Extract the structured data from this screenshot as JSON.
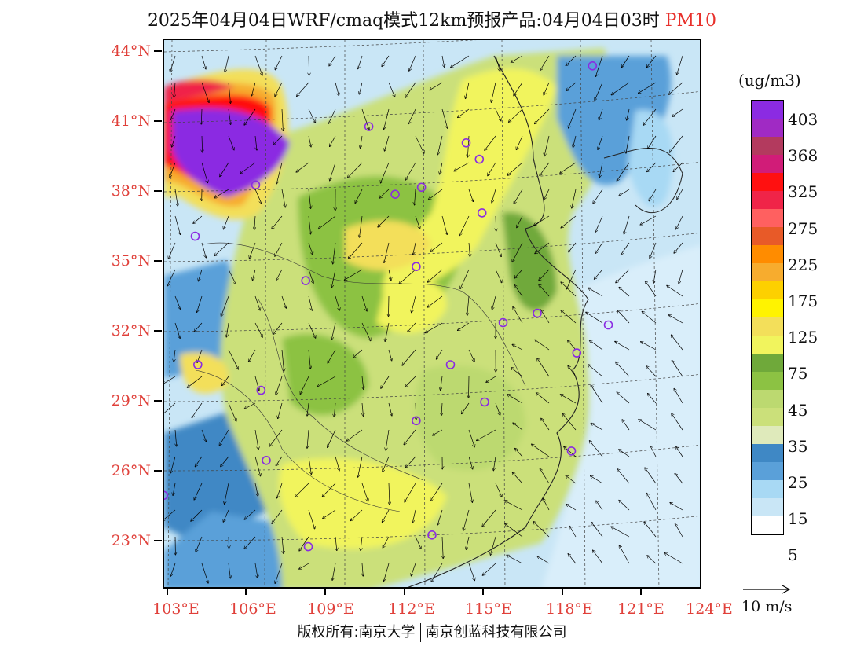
{
  "title": {
    "main": "2025年04月04日WRF/cmaq模式12km预报产品:04月04日03时",
    "pollutant": "PM10"
  },
  "lat_labels": [
    "44°N",
    "41°N",
    "38°N",
    "35°N",
    "32°N",
    "29°N",
    "26°N",
    "23°N"
  ],
  "lon_labels": [
    "103°E",
    "106°E",
    "109°E",
    "112°E",
    "115°E",
    "118°E",
    "121°E",
    "124°E"
  ],
  "legend": {
    "unit": "(ug/m3)",
    "levels": [
      "403",
      "368",
      "325",
      "275",
      "225",
      "175",
      "125",
      "75",
      "45",
      "35",
      "25",
      "15",
      "5"
    ],
    "colors": [
      "#8b2be2",
      "#a02ac4",
      "#b33a5e",
      "#d11c78",
      "#ff1010",
      "#f02448",
      "#ff6060",
      "#e85a28",
      "#ff8c00",
      "#f7ac2e",
      "#fdd000",
      "#fff300",
      "#f3df5a",
      "#f1f45d",
      "#6fa93a",
      "#8cc243",
      "#bcd970",
      "#cbe07a",
      "#dfeabb",
      "#3f88c5",
      "#5aa0d9",
      "#a8d9f4",
      "#c9e6f6",
      "#ffffff"
    ]
  },
  "wind_key": {
    "label": "10 m/s"
  },
  "stations": [
    {
      "lon": 119.1,
      "lat": 43.4
    },
    {
      "lon": 110.6,
      "lat": 40.8
    },
    {
      "lon": 114.3,
      "lat": 40.1
    },
    {
      "lon": 114.8,
      "lat": 39.4
    },
    {
      "lon": 106.3,
      "lat": 38.3
    },
    {
      "lon": 111.6,
      "lat": 37.9
    },
    {
      "lon": 112.6,
      "lat": 38.2
    },
    {
      "lon": 114.9,
      "lat": 37.1
    },
    {
      "lon": 104.0,
      "lat": 36.1
    },
    {
      "lon": 112.4,
      "lat": 34.8
    },
    {
      "lon": 108.2,
      "lat": 34.2
    },
    {
      "lon": 117.0,
      "lat": 32.8
    },
    {
      "lon": 115.7,
      "lat": 32.4
    },
    {
      "lon": 119.7,
      "lat": 32.3
    },
    {
      "lon": 118.5,
      "lat": 31.1
    },
    {
      "lon": 113.7,
      "lat": 30.6
    },
    {
      "lon": 104.1,
      "lat": 30.6
    },
    {
      "lon": 106.5,
      "lat": 29.5
    },
    {
      "lon": 115.0,
      "lat": 29.0
    },
    {
      "lon": 112.4,
      "lat": 28.2
    },
    {
      "lon": 106.7,
      "lat": 26.5
    },
    {
      "lon": 118.3,
      "lat": 26.9
    },
    {
      "lon": 102.8,
      "lat": 25.0
    },
    {
      "lon": 113.0,
      "lat": 23.3
    },
    {
      "lon": 108.3,
      "lat": 22.8
    }
  ],
  "copyright": {
    "left": "版权所有:南京大学",
    "right": "南京创蓝科技有限公司"
  }
}
